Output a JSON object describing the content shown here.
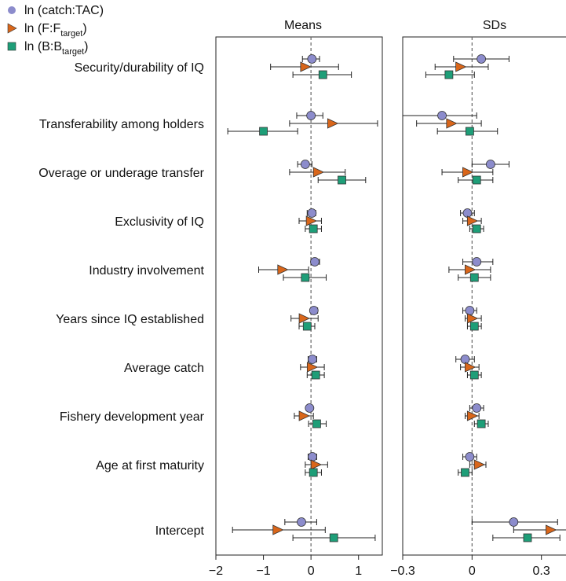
{
  "chart_data": [
    {
      "type": "scatter",
      "subtype": "forest-plot",
      "title": "Means",
      "xlim": [
        -2,
        1.5
      ],
      "xticks": [
        -2,
        -1,
        0,
        1
      ],
      "xtick_labels": [
        "−2",
        "−1",
        "0",
        "1"
      ],
      "reference_line": 0,
      "categories": [
        "Security/durability of IQ",
        "Transferability among holders",
        "Overage or underage transfer",
        "Exclusivity of IQ",
        "Industry involvement",
        "Years since IQ established",
        "Average catch",
        "Fishery development year",
        "Age at first maturity",
        "Intercept"
      ],
      "series": [
        {
          "name": "ln (catch:TAC)",
          "values": [
            0.02,
            0.0,
            -0.12,
            0.02,
            0.08,
            0.06,
            0.03,
            -0.03,
            0.03,
            -0.2
          ],
          "lower": [
            -0.18,
            -0.3,
            -0.28,
            -0.08,
            0.0,
            0.0,
            -0.06,
            -0.08,
            -0.06,
            -0.55
          ],
          "upper": [
            0.18,
            0.25,
            0.02,
            0.1,
            0.18,
            0.14,
            0.12,
            0.03,
            0.12,
            0.12
          ]
        },
        {
          "name": "ln (F:F_target)",
          "values": [
            -0.12,
            0.45,
            0.15,
            0.0,
            -0.6,
            -0.15,
            0.02,
            -0.15,
            0.1,
            -0.7
          ],
          "lower": [
            -0.85,
            -0.45,
            -0.45,
            -0.25,
            -1.1,
            -0.42,
            -0.22,
            -0.35,
            -0.12,
            -1.65
          ],
          "upper": [
            0.58,
            1.4,
            0.72,
            0.22,
            -0.05,
            0.15,
            0.28,
            0.05,
            0.35,
            0.3
          ]
        },
        {
          "name": "ln (B:B_target)",
          "values": [
            0.25,
            -1.0,
            0.65,
            0.05,
            -0.12,
            -0.08,
            0.1,
            0.12,
            0.05,
            0.48
          ],
          "lower": [
            -0.38,
            -1.75,
            0.15,
            -0.12,
            -0.58,
            -0.25,
            -0.08,
            -0.05,
            -0.12,
            -0.38
          ],
          "upper": [
            0.85,
            -0.28,
            1.15,
            0.22,
            0.32,
            0.08,
            0.28,
            0.32,
            0.22,
            1.35
          ]
        }
      ]
    },
    {
      "type": "scatter",
      "subtype": "forest-plot",
      "title": "SDs",
      "xlim": [
        -0.3,
        0.42
      ],
      "xticks": [
        -0.3,
        0,
        0.3
      ],
      "xtick_labels": [
        "−0.3",
        "0",
        "0.3"
      ],
      "reference_line": 0,
      "categories": [
        "Security/durability of IQ",
        "Transferability among holders",
        "Overage or underage transfer",
        "Exclusivity of IQ",
        "Industry involvement",
        "Years since IQ established",
        "Average catch",
        "Fishery development year",
        "Age at first maturity",
        "Intercept"
      ],
      "series": [
        {
          "name": "ln (catch:TAC)",
          "values": [
            0.04,
            -0.13,
            0.08,
            -0.02,
            0.02,
            -0.01,
            -0.03,
            0.02,
            -0.01,
            0.18
          ],
          "lower": [
            -0.08,
            -0.3,
            0.0,
            -0.05,
            -0.04,
            -0.04,
            -0.07,
            -0.01,
            -0.04,
            0.0
          ],
          "upper": [
            0.16,
            0.02,
            0.16,
            0.01,
            0.09,
            0.02,
            0.01,
            0.05,
            0.02,
            0.37
          ]
        },
        {
          "name": "ln (F:F_target)",
          "values": [
            -0.05,
            -0.09,
            -0.02,
            0.0,
            -0.01,
            0.0,
            -0.01,
            0.0,
            0.03,
            0.34
          ],
          "lower": [
            -0.16,
            -0.24,
            -0.13,
            -0.04,
            -0.1,
            -0.03,
            -0.05,
            -0.03,
            -0.01,
            0.18
          ],
          "upper": [
            0.07,
            0.04,
            0.09,
            0.04,
            0.08,
            0.04,
            0.03,
            0.03,
            0.06,
            0.48
          ]
        },
        {
          "name": "ln (B:B_target)",
          "values": [
            -0.1,
            -0.01,
            0.02,
            0.02,
            0.01,
            0.01,
            0.01,
            0.04,
            -0.03,
            0.24
          ],
          "lower": [
            -0.2,
            -0.15,
            -0.06,
            -0.01,
            -0.06,
            -0.02,
            -0.02,
            0.01,
            -0.06,
            0.09
          ],
          "upper": [
            0.01,
            0.11,
            0.09,
            0.05,
            0.08,
            0.04,
            0.04,
            0.07,
            0.0,
            0.38
          ]
        }
      ]
    }
  ],
  "legend": {
    "position": "top-left",
    "items": [
      {
        "prefix": "ln (catch:TAC)",
        "sub": "",
        "suffix": "",
        "marker": "circle",
        "color": "#8c8ccc"
      },
      {
        "prefix": "ln (F:F",
        "sub": "target",
        "suffix": ")",
        "marker": "triangle-right",
        "color": "#d9661a"
      },
      {
        "prefix": "ln (B:B",
        "sub": "target",
        "suffix": ")",
        "marker": "square",
        "color": "#1e9e78"
      }
    ]
  },
  "colors": {
    "catch": "#8c8ccc",
    "F": "#d9661a",
    "B": "#1e9e78",
    "axis": "#222222",
    "refline": "#666666"
  }
}
